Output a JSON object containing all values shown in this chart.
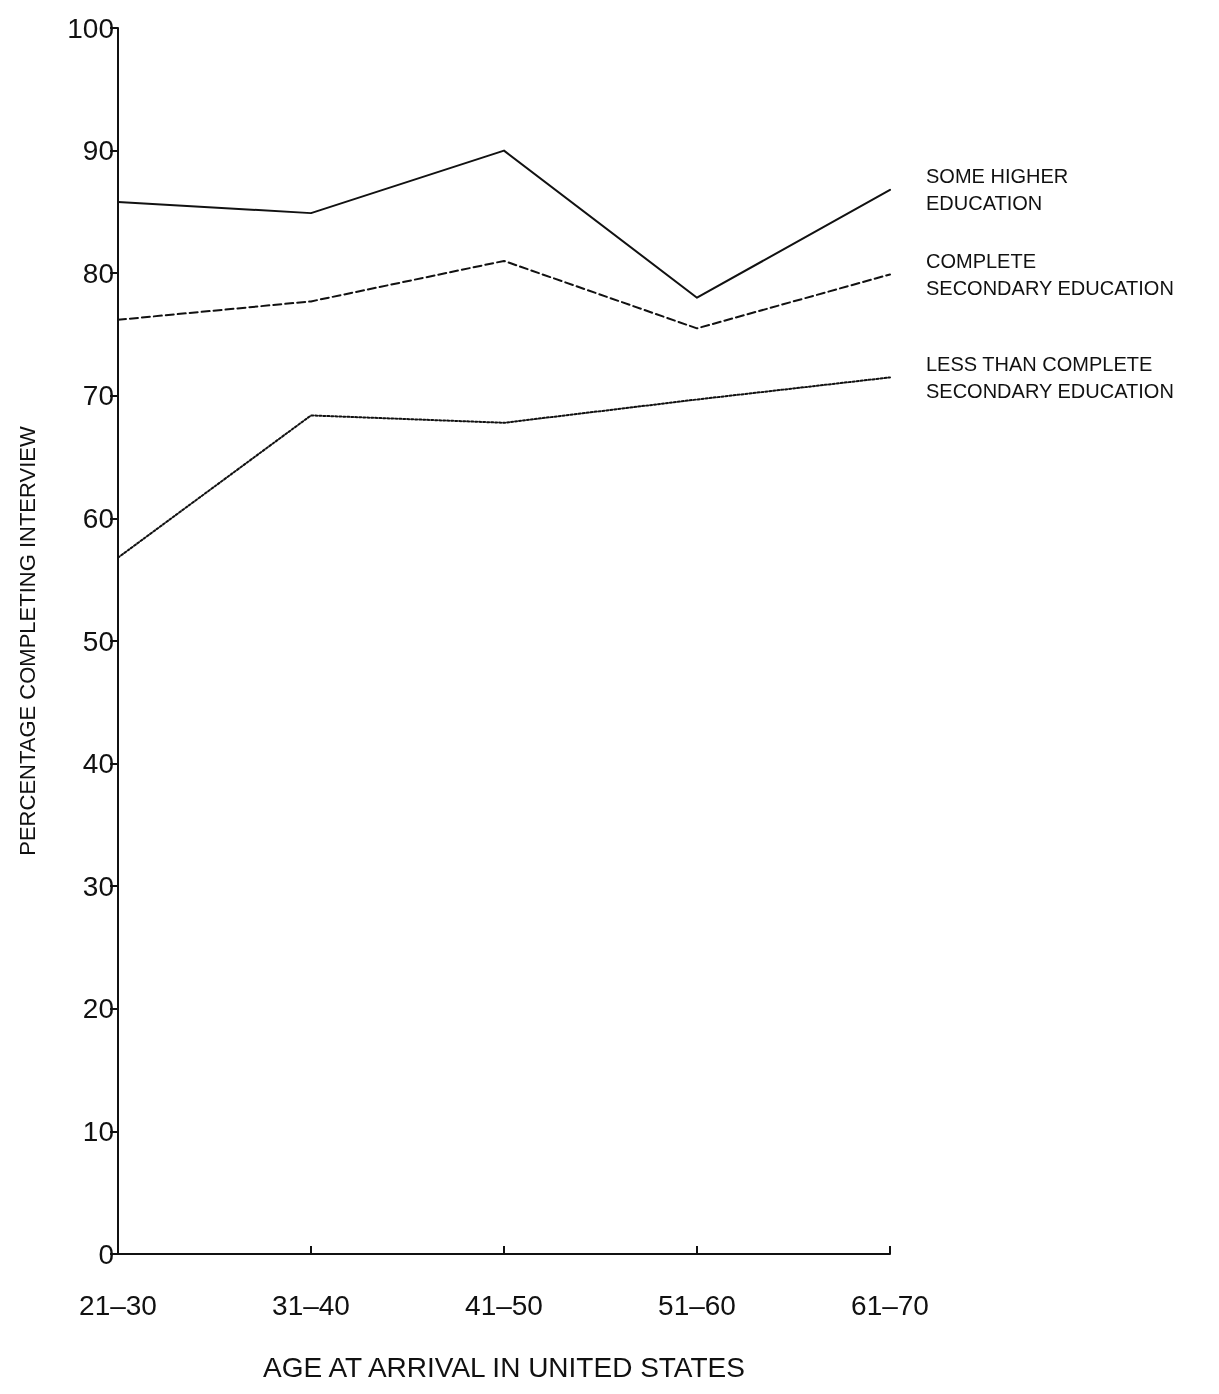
{
  "chart_data": {
    "type": "line",
    "xlabel": "AGE AT ARRIVAL IN UNITED STATES",
    "ylabel": "PERCENTAGE COMPLETING INTERVIEW",
    "categories": [
      "21–30",
      "31–40",
      "41–50",
      "51–60",
      "61–70"
    ],
    "series": [
      {
        "name": "SOME HIGHER\nEDUCATION",
        "color": "#111111",
        "line_style": "solid",
        "values": [
          85.8,
          84.9,
          90,
          78,
          86.8
        ]
      },
      {
        "name": "COMPLETE\nSECONDARY EDUCATION",
        "color": "#111111",
        "line_style": "dashed",
        "values": [
          76.2,
          77.7,
          81,
          75.5,
          79.9
        ]
      },
      {
        "name": "LESS THAN COMPLETE\nSECONDARY EDUCATION",
        "color": "#111111",
        "line_style": "dotted",
        "values": [
          56.8,
          68.4,
          67.8,
          69.7,
          71.5
        ]
      }
    ],
    "ylim": [
      0,
      100
    ],
    "yticks": [
      0,
      10,
      20,
      30,
      40,
      50,
      60,
      70,
      80,
      90,
      100
    ],
    "grid": false,
    "legend": false,
    "marker": "none"
  }
}
